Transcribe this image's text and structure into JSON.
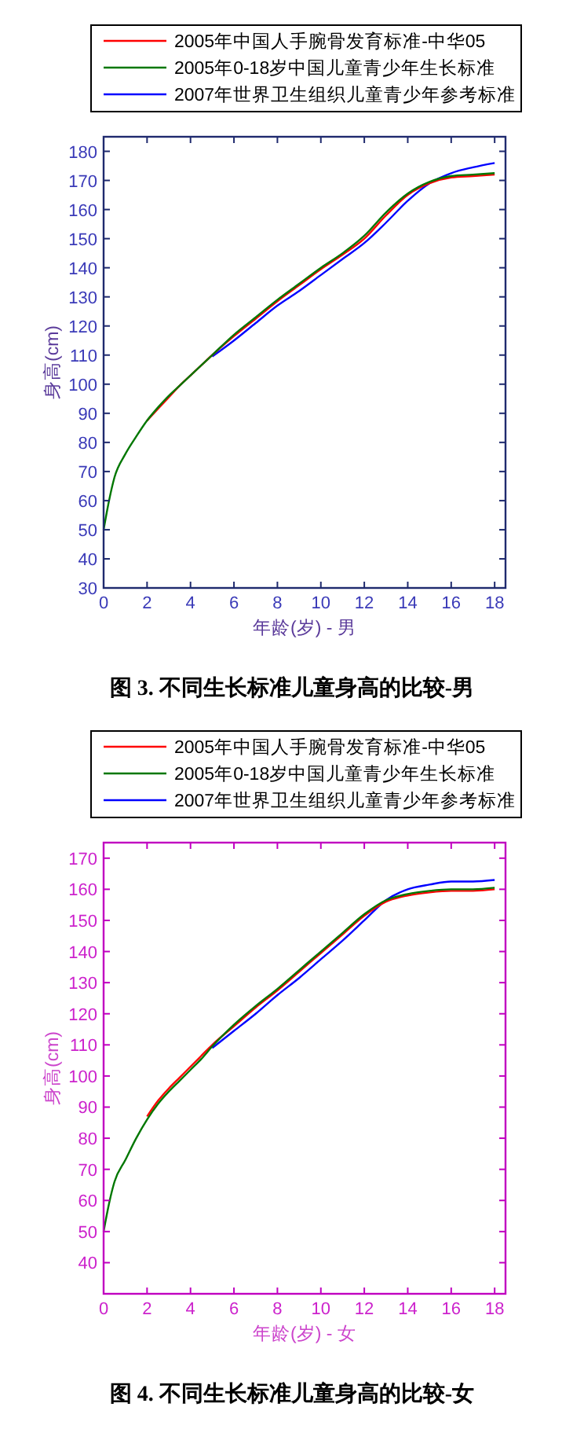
{
  "chart_data": [
    {
      "type": "line",
      "title": "图 3.  不同生长标准儿童身高的比较-男",
      "xlabel": "年龄(岁) - 男",
      "ylabel": "身高(cm)",
      "x": [
        0,
        0.25,
        0.5,
        1,
        1.5,
        2,
        2.5,
        3,
        3.5,
        4,
        4.5,
        5,
        6,
        7,
        8,
        9,
        10,
        11,
        12,
        13,
        14,
        15,
        16,
        17,
        18
      ],
      "series": [
        {
          "name": "2005年中国人手腕骨发育标准-中华05",
          "color": "#ff0000",
          "values": [
            null,
            null,
            null,
            null,
            null,
            87.5,
            91.5,
            95.5,
            99.5,
            103,
            106.5,
            110,
            116.5,
            122.5,
            128.5,
            134,
            139.5,
            144.5,
            150,
            158,
            165,
            169,
            171,
            171.5,
            172
          ]
        },
        {
          "name": "2005年0-18岁中国儿童青少年生长标准",
          "color": "#007700",
          "values": [
            50,
            60,
            68,
            76,
            82,
            87.5,
            92,
            96,
            99.5,
            103,
            106.5,
            110,
            117,
            123,
            129,
            134.5,
            140,
            145,
            151,
            159,
            165.5,
            169.5,
            171.5,
            172,
            172.5
          ]
        },
        {
          "name": "2007年世界卫生组织儿童青少年参考标准",
          "color": "#0000ff",
          "values": [
            null,
            null,
            null,
            null,
            null,
            null,
            null,
            null,
            null,
            null,
            null,
            109.5,
            115,
            121,
            127,
            132,
            137.5,
            143,
            148.5,
            155.5,
            163,
            169,
            172.5,
            174.5,
            176
          ]
        }
      ],
      "xlim": [
        0,
        18.5
      ],
      "xticks": [
        0,
        2,
        4,
        6,
        8,
        10,
        12,
        14,
        16,
        18
      ],
      "ylim": [
        30,
        185
      ],
      "yticks": [
        30,
        40,
        50,
        60,
        70,
        80,
        90,
        100,
        110,
        120,
        130,
        140,
        150,
        160,
        170,
        180
      ],
      "grid": false,
      "legend": "top",
      "line_style": "solid",
      "marker": "none"
    },
    {
      "type": "line",
      "title": "图 4.  不同生长标准儿童身高的比较-女",
      "xlabel": "年龄(岁) - 女",
      "ylabel": "身高(cm)",
      "x": [
        0,
        0.25,
        0.5,
        1,
        1.5,
        2,
        2.5,
        3,
        3.5,
        4,
        4.5,
        5,
        6,
        7,
        8,
        9,
        10,
        11,
        12,
        13,
        14,
        15,
        16,
        17,
        18
      ],
      "series": [
        {
          "name": "2005年中国人手腕骨发育标准-中华05",
          "color": "#ff0000",
          "values": [
            null,
            null,
            null,
            null,
            null,
            87,
            92,
            96,
            99.5,
            103,
            106.5,
            110,
            116,
            122,
            127.5,
            133.5,
            139.5,
            145.5,
            151.5,
            156,
            158,
            159,
            159.5,
            159.5,
            160
          ]
        },
        {
          "name": "2005年0-18岁中国儿童青少年生长标准",
          "color": "#007700",
          "values": [
            50,
            59,
            66,
            73,
            80,
            86,
            91,
            95,
            98.5,
            102,
            105.5,
            109.5,
            116.5,
            122.5,
            128,
            134,
            140,
            146,
            152,
            156.5,
            158.5,
            159.5,
            160,
            160,
            160.5
          ]
        },
        {
          "name": "2007年世界卫生组织儿童青少年参考标准",
          "color": "#0000ff",
          "values": [
            null,
            null,
            null,
            null,
            null,
            null,
            null,
            null,
            null,
            null,
            null,
            109,
            114.5,
            120,
            126,
            131.5,
            137.5,
            143.5,
            150,
            156.5,
            160,
            161.5,
            162.5,
            162.5,
            163
          ]
        }
      ],
      "xlim": [
        0,
        18.5
      ],
      "xticks": [
        0,
        2,
        4,
        6,
        8,
        10,
        12,
        14,
        16,
        18
      ],
      "ylim": [
        30,
        175
      ],
      "yticks": [
        40,
        50,
        60,
        70,
        80,
        90,
        100,
        110,
        120,
        130,
        140,
        150,
        160,
        170
      ],
      "grid": false,
      "legend": "top",
      "line_style": "solid",
      "marker": "none"
    }
  ]
}
